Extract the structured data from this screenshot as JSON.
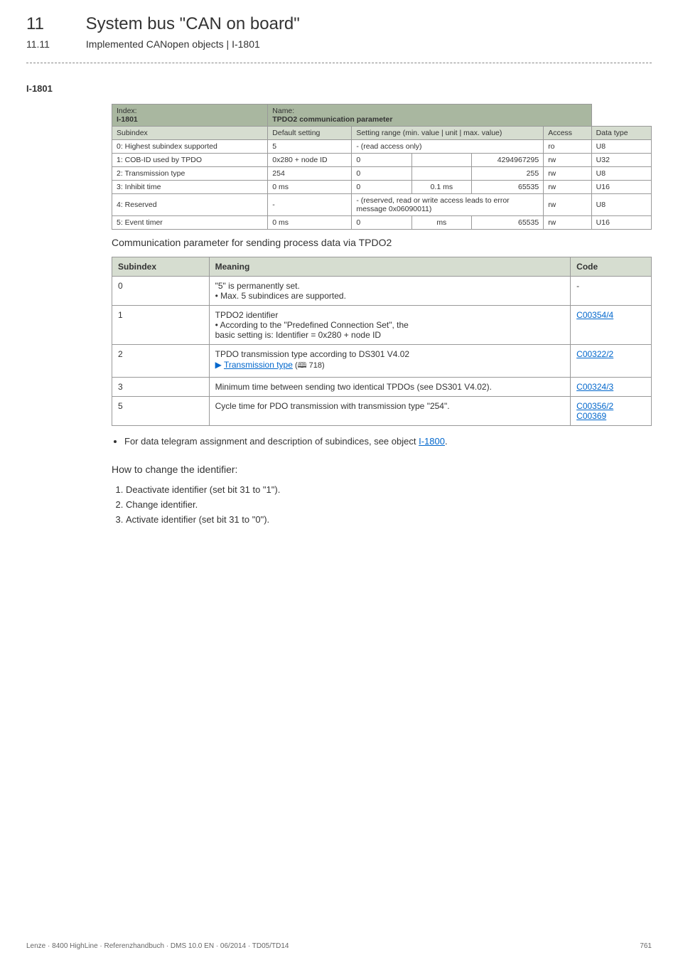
{
  "header": {
    "chapter_num": "11",
    "chapter_title": "System bus \"CAN on board\"",
    "sub_num": "11.11",
    "sub_title": "Implemented CANopen objects | I-1801"
  },
  "obj_label": "I-1801",
  "spec": {
    "hdr_index_label": "Index:",
    "hdr_index_val": "I-1801",
    "hdr_name_label": "Name:",
    "hdr_name_val": "TPDO2 communication parameter",
    "cols": {
      "subindex": "Subindex",
      "default": "Default setting",
      "range": "Setting range (min. value | unit | max. value)",
      "access": "Access",
      "dtype": "Data type"
    },
    "rows": [
      {
        "si": "0: Highest subindex supported",
        "def": "5",
        "min": "- (read access only)",
        "unit": "",
        "max": "",
        "span3": true,
        "acc": "ro",
        "dt": "U8"
      },
      {
        "si": "1: COB-ID used by TPDO",
        "def": "0x280 + node ID",
        "min": "0",
        "unit": "",
        "max": "4294967295",
        "acc": "rw",
        "dt": "U32"
      },
      {
        "si": "2: Transmission type",
        "def": "254",
        "min": "0",
        "unit": "",
        "max": "255",
        "acc": "rw",
        "dt": "U8"
      },
      {
        "si": "3: Inhibit time",
        "def": "0 ms",
        "min": "0",
        "unit": "0.1 ms",
        "max": "65535",
        "acc": "rw",
        "dt": "U16"
      },
      {
        "si": "4: Reserved",
        "def": "-",
        "min": "- (reserved, read or write access leads to error message 0x06090011)",
        "unit": "",
        "max": "",
        "span3": true,
        "acc": "rw",
        "dt": "U8"
      },
      {
        "si": "5: Event timer",
        "def": "0 ms",
        "min": "0",
        "unit": "ms",
        "max": "65535",
        "acc": "rw",
        "dt": "U16"
      }
    ]
  },
  "caption": "Communication parameter for sending process data via TPDO2",
  "meaning": {
    "headers": {
      "si": "Subindex",
      "meaning": "Meaning",
      "code": "Code"
    },
    "rows": [
      {
        "si": "0",
        "lines": [
          "\"5\" is permanently set.",
          "• Max. 5 subindices are supported."
        ],
        "code": "-",
        "code_link": false
      },
      {
        "si": "1",
        "lines": [
          "TPDO2 identifier",
          "• According to the \"Predefined Connection Set\", the",
          "  basic setting is: Identifier = 0x280 + node ID"
        ],
        "code": "C00354/4",
        "code_link": true
      },
      {
        "si": "2",
        "lines_pre": "TPDO transmission type according to DS301 V4.02",
        "link_text": "Transmission type",
        "link_page": "718",
        "code": "C00322/2",
        "code_link": true
      },
      {
        "si": "3",
        "lines": [
          "Minimum time between sending two identical TPDOs (see DS301 V4.02)."
        ],
        "code": "C00324/3",
        "code_link": true
      },
      {
        "si": "5",
        "lines": [
          "Cycle time for PDO transmission with transmission type \"254\"."
        ],
        "code": "C00356/2",
        "code2": "C00369",
        "code_link": true
      }
    ]
  },
  "bullet_prefix": "For data telegram assignment and description of subindices, see object ",
  "bullet_link": "I-1800",
  "howto_title": "How to change the identifier:",
  "steps": [
    "Deactivate identifier (set bit 31 to \"1\").",
    "Change identifier.",
    "Activate identifier (set bit 31 to \"0\")."
  ],
  "footer_left": "Lenze · 8400 HighLine · Referenzhandbuch · DMS 10.0 EN · 06/2014 · TD05/TD14",
  "footer_page": "761"
}
